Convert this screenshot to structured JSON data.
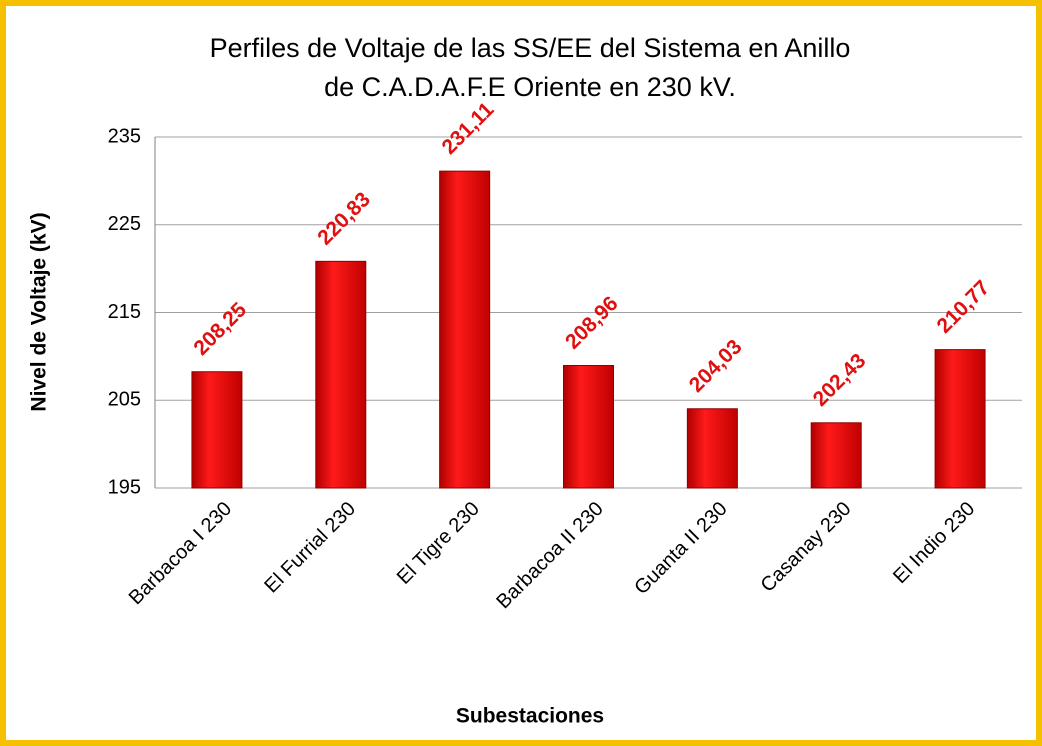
{
  "chart_data": {
    "type": "bar",
    "title": [
      "Perfiles de Voltaje de las SS/EE del Sistema en Anillo",
      "de C.A.D.A.F.E Oriente en 230 kV."
    ],
    "x_label": "Subestaciones",
    "y_label": "Nivel de Voltaje (kV)",
    "categories": [
      "Barbacoa I 230",
      "El Furrial 230",
      "El Tigre 230",
      "Barbacoa II 230",
      "Guanta II 230",
      "Casanay 230",
      "El Indio 230"
    ],
    "values": [
      208.25,
      220.83,
      231.11,
      208.96,
      204.03,
      202.43,
      210.77
    ],
    "value_labels": [
      "208,25",
      "220,83",
      "231,11",
      "208,96",
      "204,03",
      "202,43",
      "210,77"
    ],
    "color": "#e00000",
    "label_color": "#e01010",
    "ylim": [
      195,
      235
    ],
    "yticks": [
      195,
      205,
      215,
      225,
      235
    ],
    "grid": true
  }
}
